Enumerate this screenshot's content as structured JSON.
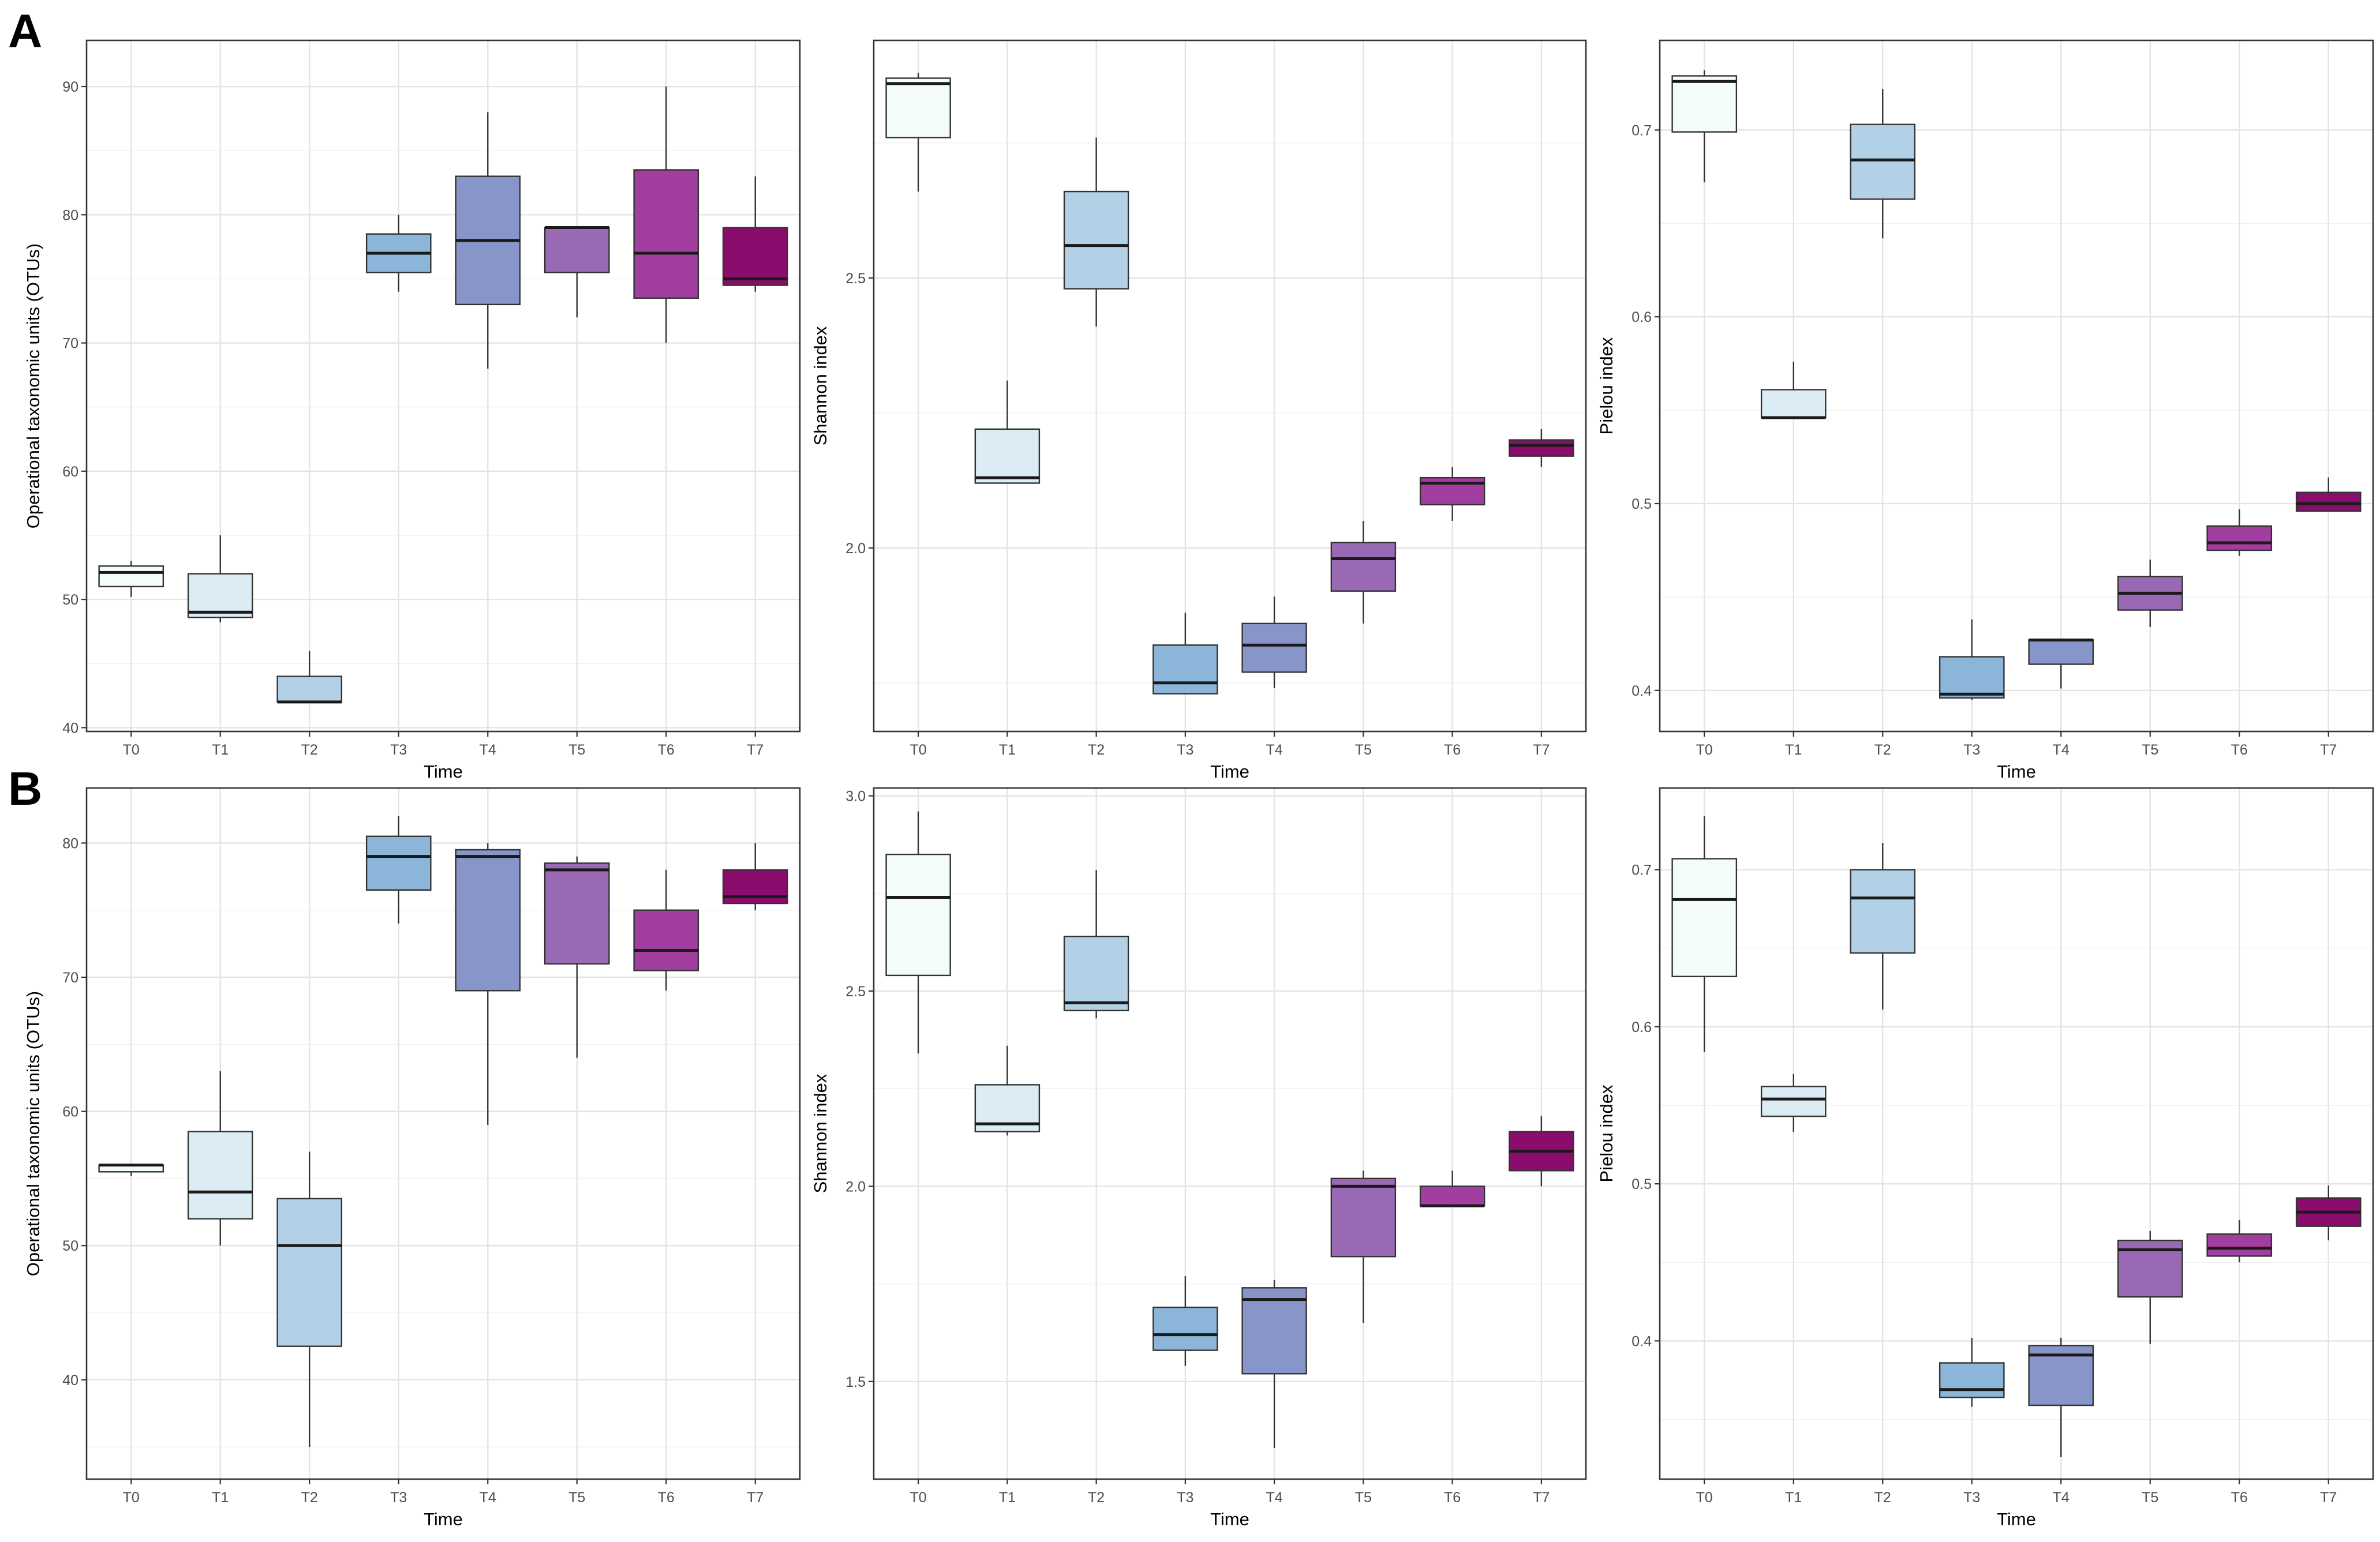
{
  "panel_labels": [
    "A",
    "B"
  ],
  "colors": {
    "T0": "#f4fbfb",
    "T1": "#dcecf4",
    "T2": "#b3d1e6",
    "T3": "#8cb6d9",
    "T4": "#8795c8",
    "T5": "#9a69b4",
    "T6": "#a23e9f",
    "T7": "#8a0d6d"
  },
  "chart_data": [
    {
      "type": "box",
      "panel": "A",
      "xlabel": "Time",
      "ylabel": "Operational taxonomic units (OTUs)",
      "categories": [
        "T0",
        "T1",
        "T2",
        "T3",
        "T4",
        "T5",
        "T6",
        "T7"
      ],
      "ylim": [
        39.7,
        93.6
      ],
      "yticks": [
        40,
        50,
        60,
        70,
        80,
        90
      ],
      "ytick_labels": [
        "40",
        "50",
        "60",
        "70",
        "80",
        "90"
      ],
      "boxes": [
        {
          "min": 50.2,
          "q1": 51.0,
          "median": 52.1,
          "q3": 52.6,
          "max": 53.0
        },
        {
          "min": 48.2,
          "q1": 48.6,
          "median": 49.0,
          "q3": 52.0,
          "max": 55.0
        },
        {
          "min": 42.0,
          "q1": 42.0,
          "median": 42.0,
          "q3": 44.0,
          "max": 46.0
        },
        {
          "min": 74.0,
          "q1": 75.5,
          "median": 77.0,
          "q3": 78.5,
          "max": 80.0
        },
        {
          "min": 68.0,
          "q1": 73.0,
          "median": 78.0,
          "q3": 83.0,
          "max": 88.0
        },
        {
          "min": 72.0,
          "q1": 75.5,
          "median": 79.0,
          "q3": 79.0,
          "max": 79.0
        },
        {
          "min": 70.0,
          "q1": 73.5,
          "median": 77.0,
          "q3": 83.5,
          "max": 90.0
        },
        {
          "min": 74.0,
          "q1": 74.5,
          "median": 75.0,
          "q3": 79.0,
          "max": 83.0
        }
      ]
    },
    {
      "type": "box",
      "panel": "A",
      "xlabel": "Time",
      "ylabel": "Shannon index",
      "categories": [
        "T0",
        "T1",
        "T2",
        "T3",
        "T4",
        "T5",
        "T6",
        "T7"
      ],
      "ylim": [
        1.66,
        2.94
      ],
      "yticks": [
        2.0,
        2.5
      ],
      "ytick_labels": [
        "2.0",
        "2.5"
      ],
      "boxes": [
        {
          "min": 2.66,
          "q1": 2.76,
          "median": 2.86,
          "q3": 2.87,
          "max": 2.88
        },
        {
          "min": 2.12,
          "q1": 2.12,
          "median": 2.13,
          "q3": 2.22,
          "max": 2.31
        },
        {
          "min": 2.41,
          "q1": 2.48,
          "median": 2.56,
          "q3": 2.66,
          "max": 2.76
        },
        {
          "min": 1.73,
          "q1": 1.73,
          "median": 1.75,
          "q3": 1.82,
          "max": 1.88
        },
        {
          "min": 1.74,
          "q1": 1.77,
          "median": 1.82,
          "q3": 1.86,
          "max": 1.91
        },
        {
          "min": 1.86,
          "q1": 1.92,
          "median": 1.98,
          "q3": 2.01,
          "max": 2.05
        },
        {
          "min": 2.05,
          "q1": 2.08,
          "median": 2.12,
          "q3": 2.13,
          "max": 2.15
        },
        {
          "min": 2.15,
          "q1": 2.17,
          "median": 2.19,
          "q3": 2.2,
          "max": 2.22
        }
      ]
    },
    {
      "type": "box",
      "panel": "A",
      "xlabel": "Time",
      "ylabel": "Pielou index",
      "categories": [
        "T0",
        "T1",
        "T2",
        "T3",
        "T4",
        "T5",
        "T6",
        "T7"
      ],
      "ylim": [
        0.378,
        0.748
      ],
      "yticks": [
        0.4,
        0.5,
        0.6,
        0.7
      ],
      "ytick_labels": [
        "0.4",
        "0.5",
        "0.6",
        "0.7"
      ],
      "boxes": [
        {
          "min": 0.672,
          "q1": 0.699,
          "median": 0.726,
          "q3": 0.729,
          "max": 0.732
        },
        {
          "min": 0.546,
          "q1": 0.546,
          "median": 0.546,
          "q3": 0.561,
          "max": 0.576
        },
        {
          "min": 0.642,
          "q1": 0.663,
          "median": 0.684,
          "q3": 0.703,
          "max": 0.722
        },
        {
          "min": 0.395,
          "q1": 0.396,
          "median": 0.398,
          "q3": 0.418,
          "max": 0.438
        },
        {
          "min": 0.401,
          "q1": 0.414,
          "median": 0.427,
          "q3": 0.427,
          "max": 0.427
        },
        {
          "min": 0.434,
          "q1": 0.443,
          "median": 0.452,
          "q3": 0.461,
          "max": 0.47
        },
        {
          "min": 0.472,
          "q1": 0.475,
          "median": 0.479,
          "q3": 0.488,
          "max": 0.497
        },
        {
          "min": 0.496,
          "q1": 0.496,
          "median": 0.5,
          "q3": 0.506,
          "max": 0.514
        }
      ]
    },
    {
      "type": "box",
      "panel": "B",
      "xlabel": "Time",
      "ylabel": "Operational taxonomic units (OTUs)",
      "categories": [
        "T0",
        "T1",
        "T2",
        "T3",
        "T4",
        "T5",
        "T6",
        "T7"
      ],
      "ylim": [
        32.6,
        84.1
      ],
      "yticks": [
        40,
        50,
        60,
        70,
        80
      ],
      "ytick_labels": [
        "40",
        "50",
        "60",
        "70",
        "80"
      ],
      "boxes": [
        {
          "min": 55.2,
          "q1": 55.5,
          "median": 56.0,
          "q3": 56.0,
          "max": 56.0
        },
        {
          "min": 50.0,
          "q1": 52.0,
          "median": 54.0,
          "q3": 58.5,
          "max": 63.0
        },
        {
          "min": 35.0,
          "q1": 42.5,
          "median": 50.0,
          "q3": 53.5,
          "max": 57.0
        },
        {
          "min": 74.0,
          "q1": 76.5,
          "median": 79.0,
          "q3": 80.5,
          "max": 82.0
        },
        {
          "min": 59.0,
          "q1": 69.0,
          "median": 79.0,
          "q3": 79.5,
          "max": 80.0
        },
        {
          "min": 64.0,
          "q1": 71.0,
          "median": 78.0,
          "q3": 78.5,
          "max": 79.0
        },
        {
          "min": 69.0,
          "q1": 70.5,
          "median": 72.0,
          "q3": 75.0,
          "max": 78.0
        },
        {
          "min": 75.0,
          "q1": 75.5,
          "median": 76.0,
          "q3": 78.0,
          "max": 80.0
        }
      ]
    },
    {
      "type": "box",
      "panel": "B",
      "xlabel": "Time",
      "ylabel": "Shannon index",
      "categories": [
        "T0",
        "T1",
        "T2",
        "T3",
        "T4",
        "T5",
        "T6",
        "T7"
      ],
      "ylim": [
        1.25,
        3.02
      ],
      "yticks": [
        1.5,
        2.0,
        2.5,
        3.0
      ],
      "ytick_labels": [
        "1.5",
        "2.0",
        "2.5",
        "3.0"
      ],
      "boxes": [
        {
          "min": 2.34,
          "q1": 2.54,
          "median": 2.74,
          "q3": 2.85,
          "max": 2.96
        },
        {
          "min": 2.13,
          "q1": 2.14,
          "median": 2.16,
          "q3": 2.26,
          "max": 2.36
        },
        {
          "min": 2.43,
          "q1": 2.45,
          "median": 2.47,
          "q3": 2.64,
          "max": 2.81
        },
        {
          "min": 1.54,
          "q1": 1.58,
          "median": 1.62,
          "q3": 1.69,
          "max": 1.77
        },
        {
          "min": 1.33,
          "q1": 1.52,
          "median": 1.71,
          "q3": 1.74,
          "max": 1.76
        },
        {
          "min": 1.65,
          "q1": 1.82,
          "median": 2.0,
          "q3": 2.02,
          "max": 2.04
        },
        {
          "min": 1.95,
          "q1": 1.95,
          "median": 1.95,
          "q3": 2.0,
          "max": 2.04
        },
        {
          "min": 2.0,
          "q1": 2.04,
          "median": 2.09,
          "q3": 2.14,
          "max": 2.18
        }
      ]
    },
    {
      "type": "box",
      "panel": "B",
      "xlabel": "Time",
      "ylabel": "Pielou index",
      "categories": [
        "T0",
        "T1",
        "T2",
        "T3",
        "T4",
        "T5",
        "T6",
        "T7"
      ],
      "ylim": [
        0.312,
        0.752
      ],
      "yticks": [
        0.4,
        0.5,
        0.6,
        0.7
      ],
      "ytick_labels": [
        "0.4",
        "0.5",
        "0.6",
        "0.7"
      ],
      "boxes": [
        {
          "min": 0.584,
          "q1": 0.632,
          "median": 0.681,
          "q3": 0.707,
          "max": 0.734
        },
        {
          "min": 0.533,
          "q1": 0.543,
          "median": 0.554,
          "q3": 0.562,
          "max": 0.57
        },
        {
          "min": 0.611,
          "q1": 0.647,
          "median": 0.682,
          "q3": 0.7,
          "max": 0.717
        },
        {
          "min": 0.358,
          "q1": 0.364,
          "median": 0.369,
          "q3": 0.386,
          "max": 0.402
        },
        {
          "min": 0.326,
          "q1": 0.359,
          "median": 0.391,
          "q3": 0.397,
          "max": 0.402
        },
        {
          "min": 0.398,
          "q1": 0.428,
          "median": 0.458,
          "q3": 0.464,
          "max": 0.47
        },
        {
          "min": 0.45,
          "q1": 0.454,
          "median": 0.459,
          "q3": 0.468,
          "max": 0.477
        },
        {
          "min": 0.464,
          "q1": 0.473,
          "median": 0.482,
          "q3": 0.491,
          "max": 0.499
        }
      ]
    }
  ]
}
